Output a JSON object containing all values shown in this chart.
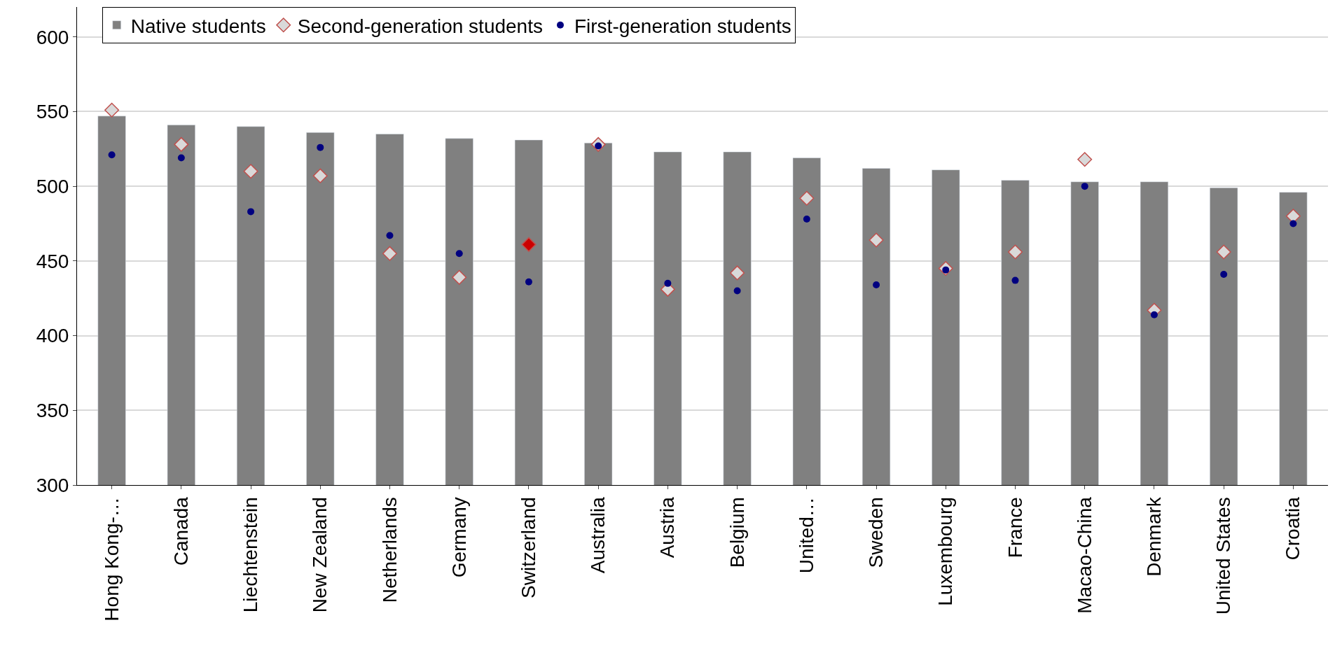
{
  "chart_data": {
    "type": "bar",
    "categories": [
      "Hong Kong-…",
      "Canada",
      "Liechtenstein",
      "New Zealand",
      "Netherlands",
      "Germany",
      "Switzerland",
      "Australia",
      "Austria",
      "Belgium",
      "United…",
      "Sweden",
      "Luxembourg",
      "France",
      "Macao-China",
      "Denmark",
      "United States",
      "Croatia"
    ],
    "series": [
      {
        "name": "Native students",
        "color": "#808080",
        "values": [
          547,
          541,
          540,
          536,
          535,
          532,
          531,
          529,
          523,
          523,
          519,
          512,
          511,
          504,
          503,
          503,
          499,
          496
        ]
      },
      {
        "name": "Second-generation students",
        "type": "scatter",
        "marker": "diamond",
        "color": "#d9d9d9",
        "colors": [
          "#d9d9d9",
          "#d9d9d9",
          "#d9d9d9",
          "#d9d9d9",
          "#d9d9d9",
          "#d9d9d9",
          "#cc0000",
          "#d9d9d9",
          "#d9d9d9",
          "#d9d9d9",
          "#d9d9d9",
          "#d9d9d9",
          "#d9d9d9",
          "#d9d9d9",
          "#d9d9d9",
          "#d9d9d9",
          "#d9d9d9",
          "#d9d9d9"
        ],
        "values": [
          551,
          528,
          510,
          507,
          455,
          439,
          461,
          528,
          431,
          442,
          492,
          464,
          445,
          456,
          518,
          417,
          456,
          480
        ]
      },
      {
        "name": "First-generation students",
        "type": "scatter",
        "marker": "circle",
        "color": "#000080",
        "values": [
          521,
          519,
          483,
          526,
          467,
          455,
          436,
          527,
          435,
          430,
          478,
          434,
          444,
          437,
          500,
          414,
          441,
          475
        ]
      }
    ],
    "ylim": [
      300,
      620
    ],
    "yticks": [
      300,
      350,
      400,
      450,
      500,
      550,
      600
    ],
    "grid": "y",
    "legend": "top"
  }
}
